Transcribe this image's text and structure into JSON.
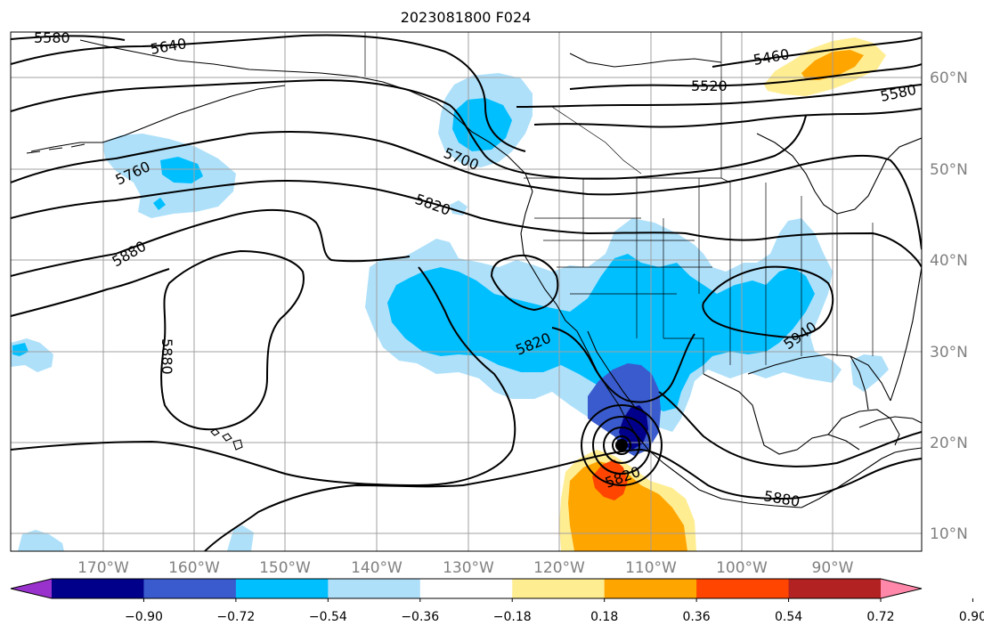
{
  "title": "2023081800 F024",
  "map": {
    "lon_ticks": [
      "170°W",
      "160°W",
      "150°W",
      "140°W",
      "130°W",
      "120°W",
      "110°W",
      "100°W",
      "90°W"
    ],
    "lat_ticks": [
      "60°N",
      "50°N",
      "40°N",
      "30°N",
      "20°N",
      "10°N"
    ],
    "contour_labels": [
      {
        "text": "5580",
        "rot": 0
      },
      {
        "text": "5640",
        "rot": -10
      },
      {
        "text": "5460",
        "rot": -10
      },
      {
        "text": "5520",
        "rot": 0
      },
      {
        "text": "5580",
        "rot": -12
      },
      {
        "text": "5700",
        "rot": 22
      },
      {
        "text": "5760",
        "rot": -25
      },
      {
        "text": "5820",
        "rot": 20
      },
      {
        "text": "5880",
        "rot": -30
      },
      {
        "text": "5880",
        "rot": 90
      },
      {
        "text": "5820",
        "rot": -22
      },
      {
        "text": "5940",
        "rot": -35
      },
      {
        "text": "5820",
        "rot": -20
      },
      {
        "text": "5880",
        "rot": 10
      }
    ]
  },
  "colorbar": {
    "colors": [
      "#9932cc",
      "#00008b",
      "#3a5bcd",
      "#00bfff",
      "#aee0fa",
      "#ffffff",
      "#ffed92",
      "#ffa500",
      "#ff4500",
      "#b22222",
      "#ff88aa"
    ],
    "tick_labels": [
      "−0.90",
      "−0.72",
      "−0.54",
      "−0.36",
      "−0.18",
      "0.18",
      "0.36",
      "0.54",
      "0.72",
      "0.90"
    ]
  }
}
